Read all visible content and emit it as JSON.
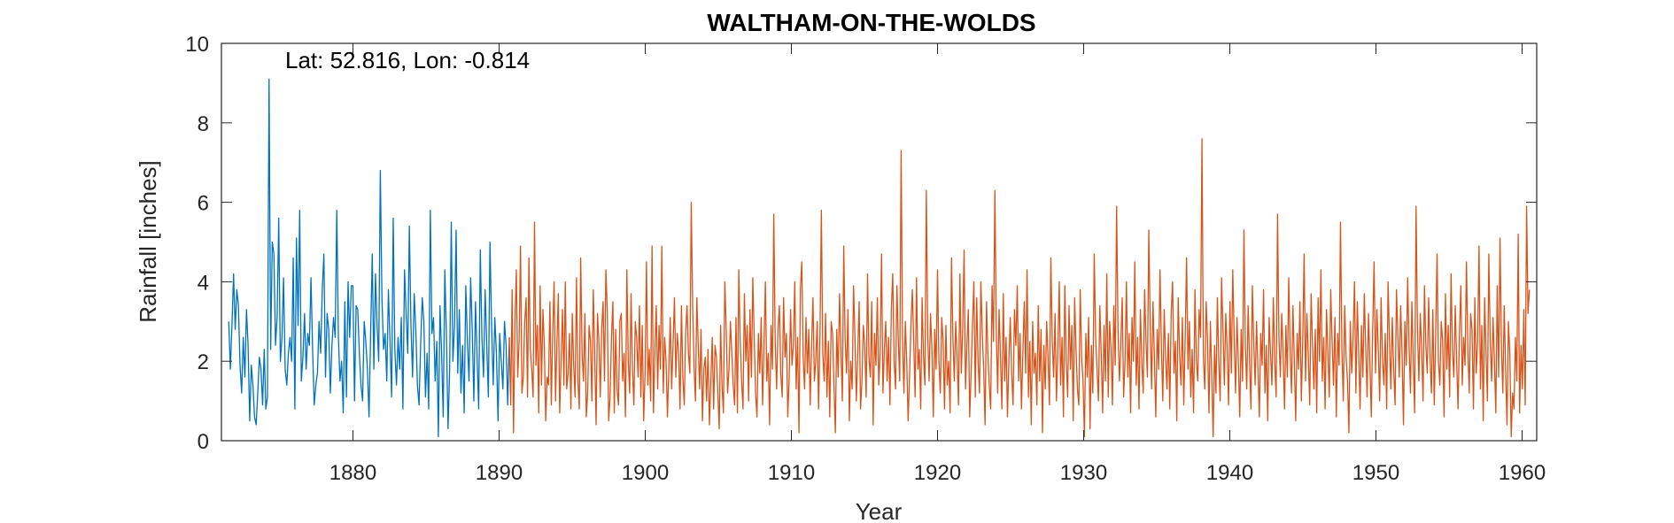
{
  "chart_data": {
    "type": "line",
    "title": "WALTHAM-ON-THE-WOLDS",
    "annotation": "Lat: 52.816, Lon: -0.814",
    "xlabel": "Year",
    "ylabel": "Rainfall [inches]",
    "xlim": [
      1871,
      1961
    ],
    "ylim": [
      0,
      10
    ],
    "xticks": [
      1880,
      1890,
      1900,
      1910,
      1920,
      1930,
      1940,
      1950,
      1960
    ],
    "yticks": [
      0,
      2,
      4,
      6,
      8,
      10
    ],
    "grid": false,
    "series": [
      {
        "color": "#0072BD",
        "start_year": 1871.5,
        "end_year": 1890.7,
        "values": [
          3.0,
          1.8,
          2.9,
          4.2,
          2.8,
          3.8,
          3.4,
          1.9,
          1.2,
          2.6,
          1.6,
          3.3,
          2.4,
          0.5,
          1.9,
          1.4,
          0.6,
          0.4,
          1.2,
          2.1,
          1.8,
          0.9,
          2.3,
          0.8,
          1.1,
          9.1,
          2.3,
          5.0,
          4.7,
          2.4,
          3.1,
          5.6,
          2.0,
          2.6,
          4.1,
          1.8,
          1.4,
          2.2,
          2.6,
          2.0,
          4.6,
          0.8,
          5.1,
          2.9,
          5.8,
          1.5,
          2.1,
          3.2,
          1.8,
          2.7,
          2.4,
          4.1,
          2.3,
          0.9,
          1.4,
          1.7,
          3.0,
          2.2,
          3.8,
          4.7,
          1.6,
          3.2,
          2.8,
          1.2,
          2.4,
          3.1,
          2.6,
          5.8,
          2.6,
          1.5,
          2.0,
          0.7,
          3.5,
          1.1,
          4.0,
          2.6,
          3.9,
          3.9,
          1.0,
          3.4,
          3.3,
          2.2,
          1.4,
          1.0,
          3.0,
          2.5,
          1.8,
          0.6,
          2.7,
          4.7,
          1.8,
          4.2,
          2.9,
          2.0,
          6.8,
          3.6,
          2.3,
          2.7,
          1.5,
          3.8,
          2.5,
          1.1,
          5.6,
          2.3,
          1.4,
          2.6,
          1.8,
          3.1,
          0.8,
          4.3,
          3.2,
          2.2,
          5.4,
          2.9,
          1.6,
          3.7,
          2.8,
          1.4,
          0.9,
          2.4,
          3.6,
          3.0,
          1.1,
          2.2,
          0.8,
          5.8,
          2.7,
          3.1,
          1.5,
          2.5,
          0.1,
          3.4,
          2.2,
          0.6,
          4.3,
          2.6,
          0.3,
          1.8,
          5.5,
          2.0,
          2.9,
          5.3,
          1.7,
          3.3,
          1.2,
          2.4,
          0.7,
          3.9,
          2.5,
          1.5,
          4.1,
          2.8,
          1.0,
          3.5,
          2.1,
          0.8,
          4.8,
          2.6,
          1.6,
          3.8,
          2.4,
          1.1,
          5.0,
          2.9,
          1.4,
          3.1,
          2.2,
          0.5,
          2.7,
          2.0,
          1.3,
          3.0,
          2.4,
          0.9,
          2.6
        ]
      },
      {
        "color": "#D95319",
        "start_year": 1890.7,
        "end_year": 1960.5,
        "values": [
          2.6,
          0.9,
          3.8,
          0.2,
          2.9,
          4.3,
          1.6,
          2.5,
          4.9,
          1.2,
          1.6,
          3.0,
          3.6,
          1.1,
          4.6,
          2.3,
          1.8,
          1.1,
          5.5,
          1.9,
          2.9,
          0.7,
          3.9,
          1.4,
          3.3,
          2.4,
          0.5,
          1.6,
          1.4,
          3.5,
          0.9,
          2.7,
          4.0,
          1.0,
          2.4,
          3.7,
          0.7,
          2.0,
          3.3,
          1.4,
          4.0,
          1.3,
          1.7,
          2.7,
          0.8,
          3.2,
          1.9,
          1.1,
          4.1,
          1.5,
          0.8,
          4.6,
          2.2,
          1.5,
          3.2,
          0.6,
          1.2,
          2.9,
          2.5,
          1.0,
          3.8,
          2.2,
          0.4,
          3.2,
          2.5,
          1.1,
          2.8,
          3.5,
          1.5,
          4.3,
          3.3,
          0.5,
          1.1,
          2.6,
          3.5,
          0.7,
          2.8,
          1.3,
          0.9,
          3.0,
          3.2,
          1.5,
          2.2,
          0.6,
          4.3,
          2.0,
          1.2,
          3.7,
          1.8,
          0.9,
          3.0,
          2.6,
          1.6,
          3.4,
          1.1,
          2.9,
          0.5,
          1.7,
          4.5,
          1.4,
          2.3,
          1.0,
          4.9,
          0.7,
          2.2,
          3.4,
          1.3,
          2.9,
          1.8,
          4.9,
          1.2,
          2.6,
          2.0,
          0.6,
          1.8,
          3.1,
          1.3,
          2.4,
          3.6,
          1.6,
          2.7,
          2.2,
          0.8,
          3.4,
          1.6,
          0.9,
          2.7,
          3.4,
          2.2,
          1.7,
          6.0,
          3.4,
          1.9,
          1.0,
          3.6,
          2.4,
          1.3,
          2.8,
          0.5,
          1.8,
          2.1,
          1.0,
          2.3,
          0.4,
          1.5,
          2.6,
          0.8,
          2.4,
          2.1,
          1.2,
          0.3,
          2.9,
          1.4,
          0.7,
          4.0,
          2.8,
          1.2,
          1.8,
          3.0,
          2.2,
          1.4,
          0.9,
          3.1,
          0.7,
          4.3,
          2.5,
          1.5,
          0.8,
          3.7,
          2.0,
          2.9,
          1.0,
          3.3,
          1.6,
          4.1,
          2.6,
          1.2,
          0.6,
          2.7,
          1.7,
          3.1,
          0.9,
          2.4,
          4.0,
          1.5,
          2.2,
          0.4,
          2.9,
          1.8,
          5.7,
          2.5,
          1.3,
          2.8,
          3.4,
          1.7,
          1.1,
          3.6,
          2.1,
          2.7,
          0.6,
          1.6,
          3.3,
          1.9,
          2.4,
          4.0,
          1.3,
          2.6,
          0.2,
          3.8,
          4.5,
          2.1,
          1.3,
          3.1,
          1.7,
          2.8,
          0.9,
          2.4,
          3.6,
          1.5,
          2.0,
          3.0,
          0.8,
          2.6,
          5.8,
          2.2,
          1.5,
          3.2,
          1.1,
          2.5,
          0.6,
          3.0,
          2.7,
          1.4,
          0.2,
          2.8,
          1.6,
          3.7,
          2.3,
          1.0,
          4.9,
          2.5,
          1.7,
          3.3,
          0.5,
          2.0,
          1.3,
          3.9,
          2.6,
          1.0,
          2.2,
          3.5,
          0.8,
          1.5,
          2.9,
          2.4,
          1.1,
          4.2,
          2.1,
          1.6,
          3.5,
          0.4,
          2.7,
          1.9,
          3.6,
          1.4,
          2.2,
          4.7,
          1.2,
          2.3,
          3.0,
          1.5,
          2.6,
          0.9,
          3.3,
          4.2,
          2.0,
          1.3,
          3.9,
          2.5,
          1.5,
          7.3,
          2.6,
          1.2,
          3.0,
          2.0,
          0.5,
          1.6,
          2.9,
          3.8,
          2.5,
          1.1,
          4.1,
          1.8,
          2.3,
          0.8,
          3.6,
          2.1,
          1.4,
          6.3,
          2.7,
          1.5,
          3.2,
          2.3,
          0.6,
          2.8,
          1.8,
          4.3,
          2.0,
          1.2,
          3.1,
          2.5,
          0.8,
          2.9,
          1.4,
          2.0,
          0.7,
          4.6,
          2.6,
          1.5,
          3.0,
          2.1,
          0.9,
          4.2,
          1.7,
          2.8,
          4.8,
          1.3,
          2.4,
          3.3,
          0.6,
          1.7,
          2.9,
          4.0,
          1.1,
          3.6,
          2.0,
          1.2,
          4.0,
          2.7,
          1.8,
          0.4,
          3.5,
          2.2,
          1.4,
          0.8,
          3.9,
          2.5,
          6.3,
          2.8,
          1.2,
          3.3,
          2.1,
          0.8,
          3.7,
          1.5,
          2.6,
          0.6,
          2.0,
          3.1,
          1.7,
          0.9,
          3.3,
          2.4,
          3.9,
          1.5,
          2.7,
          0.8,
          2.2,
          3.5,
          1.7,
          4.3,
          1.1,
          2.5,
          0.4,
          3.0,
          1.7,
          2.2,
          0.9,
          3.4,
          1.5,
          2.8,
          0.2,
          2.4,
          1.3,
          3.0,
          2.1,
          0.9,
          4.6,
          2.5,
          1.6,
          3.2,
          1.0,
          2.3,
          4.0,
          1.4,
          2.6,
          0.6,
          3.9,
          2.0,
          1.1,
          3.4,
          1.8,
          2.9,
          0.5,
          3.6,
          2.3,
          1.3,
          0.9,
          3.8,
          2.1,
          1.5,
          0.1,
          2.7,
          1.6,
          3.1,
          0.3,
          2.4,
          1.2,
          4.7,
          2.6,
          1.8,
          1.0,
          3.4,
          2.2,
          0.7,
          2.9,
          1.5,
          4.2,
          1.1,
          3.0,
          2.3,
          0.9,
          3.4,
          1.9,
          5.9,
          2.8,
          1.5,
          2.4,
          3.6,
          1.1,
          2.0,
          4.0,
          1.6,
          2.7,
          0.7,
          3.1,
          2.0,
          4.5,
          1.4,
          2.6,
          0.8,
          3.3,
          2.0,
          1.2,
          3.8,
          2.5,
          1.6,
          5.3,
          2.9,
          1.3,
          3.5,
          2.1,
          0.6,
          2.8,
          1.8,
          4.3,
          2.4,
          1.0,
          3.3,
          2.1,
          1.3,
          2.7,
          0.8,
          3.2,
          4.0,
          1.7,
          2.5,
          0.5,
          3.6,
          2.2,
          1.4,
          3.1,
          0.9,
          2.6,
          4.6,
          1.8,
          3.0,
          1.1,
          2.3,
          0.7,
          3.8,
          2.0,
          1.5,
          3.3,
          2.6,
          7.6,
          2.1,
          1.3,
          3.5,
          2.5,
          0.7,
          3.0,
          1.6,
          0.1,
          2.4,
          1.2,
          3.6,
          2.0,
          1.0,
          4.1,
          2.8,
          1.4,
          3.2,
          2.3,
          0.9,
          3.5,
          1.7,
          4.3,
          2.6,
          1.2,
          3.1,
          2.0,
          0.6,
          2.8,
          1.5,
          5.3,
          2.4,
          1.3,
          3.4,
          2.0,
          0.8,
          3.9,
          2.5,
          1.4,
          3.0,
          1.8,
          0.6,
          2.7,
          1.9,
          3.8,
          1.2,
          2.4,
          0.5,
          3.1,
          2.2,
          1.4,
          3.6,
          2.0,
          1.1,
          5.7,
          2.6,
          1.6,
          3.2,
          2.2,
          0.8,
          2.9,
          1.6,
          4.1,
          2.3,
          1.2,
          3.4,
          2.0,
          0.5,
          2.7,
          1.8,
          3.5,
          1.0,
          2.5,
          4.7,
          1.5,
          3.2,
          2.1,
          0.9,
          3.7,
          2.4,
          1.3,
          2.8,
          0.7,
          3.6,
          2.0,
          4.3,
          1.5,
          2.6,
          0.8,
          3.3,
          2.2,
          1.1,
          3.8,
          2.5,
          1.4,
          3.1,
          0.6,
          2.7,
          1.9,
          5.5,
          2.3,
          1.0,
          3.4,
          2.1,
          1.5,
          0.2,
          3.0,
          1.7,
          2.6,
          4.0,
          1.2,
          3.5,
          2.2,
          0.8,
          2.9,
          1.6,
          3.7,
          2.4,
          1.1,
          3.2,
          2.0,
          0.6,
          2.8,
          4.5,
          1.7,
          3.3,
          2.3,
          1.0,
          3.6,
          2.1,
          1.4,
          2.7,
          0.8,
          4.0,
          2.5,
          1.3,
          3.1,
          1.8,
          0.9,
          3.8,
          2.6,
          1.6,
          3.4,
          2.2,
          0.4,
          3.0,
          1.9,
          4.1,
          2.4,
          1.2,
          3.5,
          2.0,
          0.7,
          5.9,
          2.8,
          1.5,
          3.2,
          2.3,
          1.0,
          3.9,
          2.4,
          1.7,
          3.6,
          2.1,
          1.2,
          3.3,
          0.9,
          2.6,
          4.7,
          2.0,
          1.4,
          3.0,
          2.5,
          0.6,
          3.7,
          1.8,
          2.9,
          1.1,
          4.2,
          2.3,
          1.6,
          3.4,
          2.0,
          0.8,
          2.7,
          3.9,
          1.4,
          2.6,
          1.9,
          4.5,
          2.3,
          1.2,
          3.2,
          2.8,
          0.8,
          3.6,
          1.7,
          2.5,
          4.9,
          1.3,
          2.9,
          0.5,
          3.6,
          2.2,
          1.0,
          4.7,
          2.5,
          1.5,
          3.1,
          2.0,
          0.7,
          3.9,
          1.6,
          5.1,
          2.4,
          1.2,
          3.4,
          1.8,
          0.4,
          3.0,
          2.2,
          0.1,
          1.2,
          0.8,
          2.6,
          1.5,
          5.2,
          0.7,
          2.4,
          1.3,
          3.3,
          0.9,
          5.9,
          3.2,
          3.8
        ]
      }
    ]
  }
}
